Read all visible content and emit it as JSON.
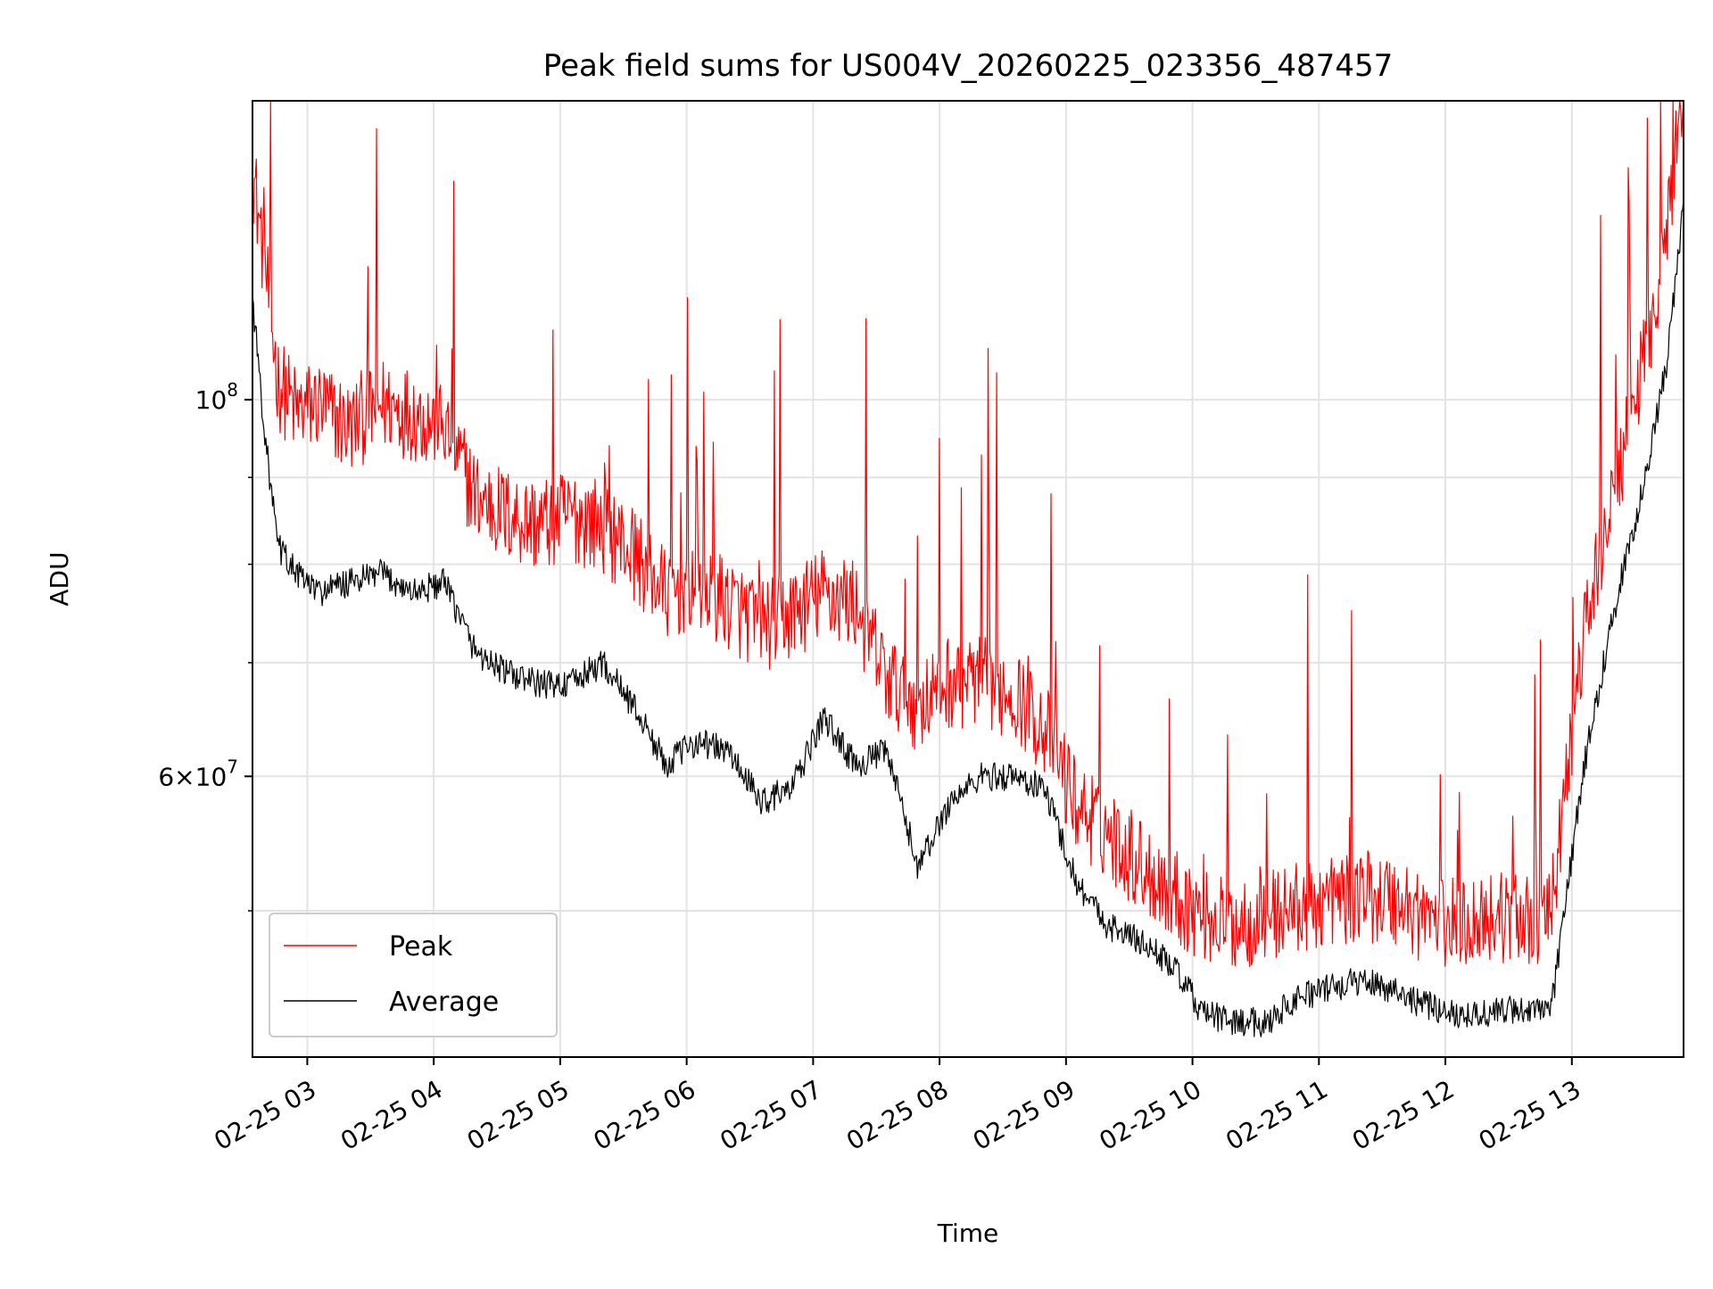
{
  "chart_data": {
    "type": "line",
    "title": "Peak field sums for US004V_20260225_023356_487457",
    "xlabel": "Time",
    "ylabel": "ADU",
    "y_scale": "log",
    "ylim": [
      41000000,
      150000000
    ],
    "xlim": [
      "2026-02-25 02:34",
      "2026-02-25 13:53"
    ],
    "grid": true,
    "legend_position": "lower-left",
    "x_ticks": [
      {
        "label": "02-25 03",
        "time": "2026-02-25 03:00"
      },
      {
        "label": "02-25 04",
        "time": "2026-02-25 04:00"
      },
      {
        "label": "02-25 05",
        "time": "2026-02-25 05:00"
      },
      {
        "label": "02-25 06",
        "time": "2026-02-25 06:00"
      },
      {
        "label": "02-25 07",
        "time": "2026-02-25 07:00"
      },
      {
        "label": "02-25 08",
        "time": "2026-02-25 08:00"
      },
      {
        "label": "02-25 09",
        "time": "2026-02-25 09:00"
      },
      {
        "label": "02-25 10",
        "time": "2026-02-25 10:00"
      },
      {
        "label": "02-25 11",
        "time": "2026-02-25 11:00"
      },
      {
        "label": "02-25 12",
        "time": "2026-02-25 12:00"
      },
      {
        "label": "02-25 13",
        "time": "2026-02-25 13:00"
      }
    ],
    "y_major_ticks": [
      {
        "base": "10",
        "exp": "8",
        "value": 100000000
      },
      {
        "base": "6×10",
        "exp": "7",
        "value": 60000000
      }
    ],
    "y_minor_gridlines": [
      50000000,
      70000000,
      80000000,
      90000000
    ],
    "series": [
      {
        "name": "Peak",
        "color": "#ff0000",
        "x": [
          "2026-02-25 02:34",
          "2026-02-25 02:40",
          "2026-02-25 02:46",
          "2026-02-25 02:55",
          "2026-02-25 03:05",
          "2026-02-25 03:20",
          "2026-02-25 03:35",
          "2026-02-25 03:50",
          "2026-02-25 04:05",
          "2026-02-25 04:20",
          "2026-02-25 04:35",
          "2026-02-25 04:50",
          "2026-02-25 05:05",
          "2026-02-25 05:20",
          "2026-02-25 05:35",
          "2026-02-25 05:50",
          "2026-02-25 06:05",
          "2026-02-25 06:20",
          "2026-02-25 06:35",
          "2026-02-25 06:50",
          "2026-02-25 07:05",
          "2026-02-25 07:20",
          "2026-02-25 07:35",
          "2026-02-25 07:50",
          "2026-02-25 08:05",
          "2026-02-25 08:20",
          "2026-02-25 08:35",
          "2026-02-25 08:50",
          "2026-02-25 09:05",
          "2026-02-25 09:20",
          "2026-02-25 09:35",
          "2026-02-25 09:50",
          "2026-02-25 10:05",
          "2026-02-25 10:20",
          "2026-02-25 10:35",
          "2026-02-25 10:50",
          "2026-02-25 11:05",
          "2026-02-25 11:20",
          "2026-02-25 11:35",
          "2026-02-25 11:50",
          "2026-02-25 12:05",
          "2026-02-25 12:20",
          "2026-02-25 12:35",
          "2026-02-25 12:50",
          "2026-02-25 13:05",
          "2026-02-25 13:15",
          "2026-02-25 13:25",
          "2026-02-25 13:35",
          "2026-02-25 13:45",
          "2026-02-25 13:53"
        ],
        "values": [
          128000000,
          112000000,
          96000000,
          92000000,
          93000000,
          90000000,
          93000000,
          92000000,
          90000000,
          82000000,
          80000000,
          79000000,
          80000000,
          79000000,
          76000000,
          72000000,
          73000000,
          71000000,
          69000000,
          70000000,
          72000000,
          71000000,
          64000000,
          62000000,
          64000000,
          64000000,
          63000000,
          60000000,
          54000000,
          52000000,
          50000000,
          48000000,
          46500000,
          46000000,
          46500000,
          47000000,
          47500000,
          48000000,
          47500000,
          46500000,
          46000000,
          46500000,
          46500000,
          46500000,
          67000000,
          78000000,
          88000000,
          100000000,
          118000000,
          145000000
        ]
      },
      {
        "name": "Average",
        "color": "#000000",
        "x": [
          "2026-02-25 02:34",
          "2026-02-25 02:40",
          "2026-02-25 02:46",
          "2026-02-25 02:55",
          "2026-02-25 03:05",
          "2026-02-25 03:20",
          "2026-02-25 03:35",
          "2026-02-25 03:50",
          "2026-02-25 04:05",
          "2026-02-25 04:20",
          "2026-02-25 04:35",
          "2026-02-25 04:50",
          "2026-02-25 05:05",
          "2026-02-25 05:20",
          "2026-02-25 05:35",
          "2026-02-25 05:50",
          "2026-02-25 06:05",
          "2026-02-25 06:20",
          "2026-02-25 06:35",
          "2026-02-25 06:50",
          "2026-02-25 07:05",
          "2026-02-25 07:20",
          "2026-02-25 07:35",
          "2026-02-25 07:50",
          "2026-02-25 08:05",
          "2026-02-25 08:20",
          "2026-02-25 08:35",
          "2026-02-25 08:50",
          "2026-02-25 09:05",
          "2026-02-25 09:20",
          "2026-02-25 09:35",
          "2026-02-25 09:50",
          "2026-02-25 10:05",
          "2026-02-25 10:20",
          "2026-02-25 10:35",
          "2026-02-25 10:50",
          "2026-02-25 11:05",
          "2026-02-25 11:20",
          "2026-02-25 11:35",
          "2026-02-25 11:50",
          "2026-02-25 12:05",
          "2026-02-25 12:20",
          "2026-02-25 12:35",
          "2026-02-25 12:50",
          "2026-02-25 13:05",
          "2026-02-25 13:15",
          "2026-02-25 13:25",
          "2026-02-25 13:35",
          "2026-02-25 13:45",
          "2026-02-25 13:53"
        ],
        "values": [
          115000000,
          95000000,
          82000000,
          79000000,
          77000000,
          78000000,
          79000000,
          77000000,
          78000000,
          71000000,
          69000000,
          68000000,
          68000000,
          70000000,
          66000000,
          61000000,
          63000000,
          62000000,
          58000000,
          59000000,
          65000000,
          61000000,
          62000000,
          53000000,
          58000000,
          60000000,
          60000000,
          59000000,
          52000000,
          49000000,
          48000000,
          46500000,
          43500000,
          43000000,
          43000000,
          44500000,
          45000000,
          45500000,
          45000000,
          44000000,
          43500000,
          43500000,
          43800000,
          43500000,
          60000000,
          70000000,
          80000000,
          90000000,
          105000000,
          130000000
        ]
      }
    ]
  }
}
